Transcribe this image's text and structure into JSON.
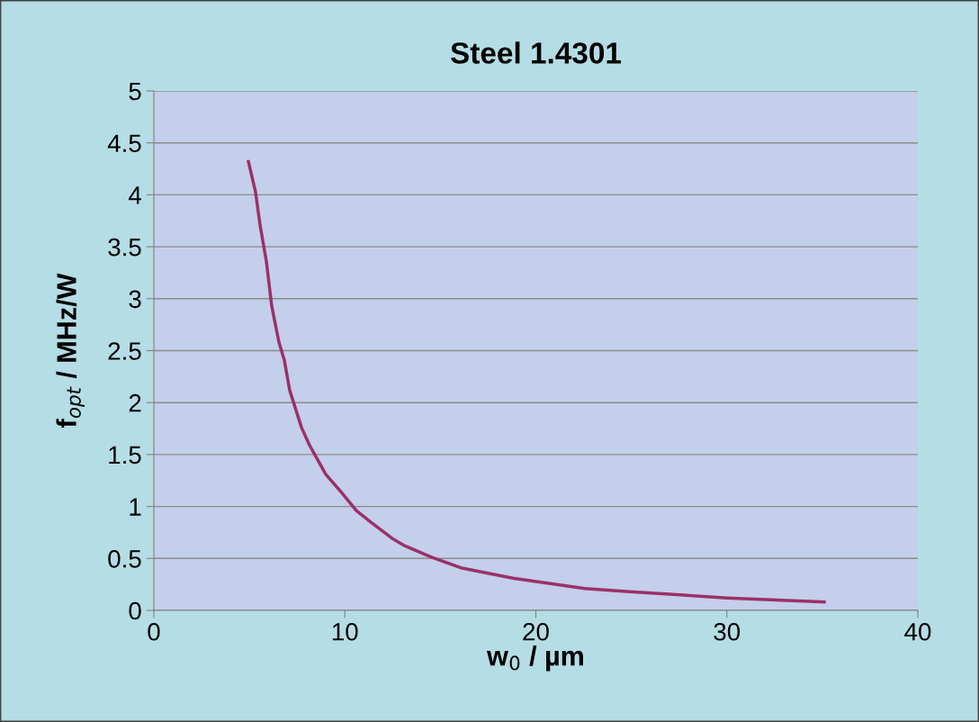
{
  "chart_data": {
    "type": "line",
    "title": "Steel 1.4301",
    "xlabel": "w$_{0}$ / µm",
    "ylabel": "f$_{opt}$ / MHz/W",
    "series": [
      {
        "color": "#9b3068",
        "x": [
          4.95,
          5.32,
          5.56,
          5.89,
          6.17,
          6.55,
          6.83,
          7.11,
          7.73,
          8.15,
          9.0,
          9.85,
          10.6,
          11.35,
          12.5,
          13.15,
          14.56,
          16.07,
          18.8,
          22.57,
          24.9,
          30.0,
          35.1
        ],
        "values": [
          4.32,
          4.03,
          3.71,
          3.36,
          2.93,
          2.58,
          2.41,
          2.12,
          1.76,
          1.59,
          1.31,
          1.13,
          0.96,
          0.85,
          0.69,
          0.62,
          0.51,
          0.41,
          0.31,
          0.21,
          0.18,
          0.12,
          0.08
        ]
      }
    ],
    "xlim": [
      0,
      40
    ],
    "xticks": [
      0,
      10,
      20,
      30,
      40
    ],
    "ylim": [
      0,
      5
    ],
    "yticks": [
      0,
      0.5,
      1,
      1.5,
      2,
      2.5,
      3,
      3.5,
      4,
      4.5,
      5
    ],
    "grid": "y",
    "legend": false,
    "marker": "none",
    "line_style": "solid"
  }
}
